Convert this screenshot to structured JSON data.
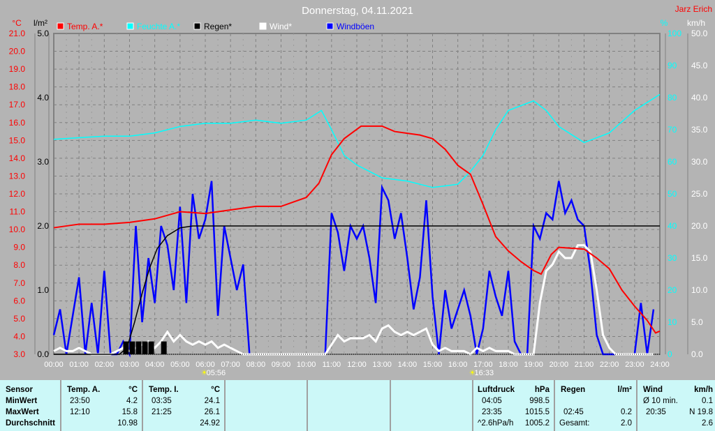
{
  "chart_data": {
    "type": "line",
    "title": "Donnerstag, 04.11.2021",
    "author": "Jarz Erich",
    "legend": [
      {
        "name": "Temp. A.*",
        "color": "#ff0000"
      },
      {
        "name": "Feuchte A.*",
        "color": "#00ffff"
      },
      {
        "name": "Regen*",
        "color": "#000000"
      },
      {
        "name": "Wind*",
        "color": "#ffffff"
      },
      {
        "name": "Windböen",
        "color": "#0000ff"
      }
    ],
    "axes": {
      "temp": {
        "unit": "°C",
        "range": [
          3,
          21
        ],
        "ticks": [
          "3.0",
          "4.0",
          "5.0",
          "6.0",
          "7.0",
          "8.0",
          "9.0",
          "10.0",
          "11.0",
          "12.0",
          "13.0",
          "14.0",
          "15.0",
          "16.0",
          "17.0",
          "18.0",
          "19.0",
          "20.0",
          "21.0"
        ],
        "color": "#ff0000"
      },
      "rain": {
        "unit": "l/m²",
        "range": [
          0,
          5
        ],
        "ticks": [
          "0.0",
          "1.0",
          "2.0",
          "3.0",
          "4.0",
          "5.0"
        ],
        "color": "#000000"
      },
      "humidity": {
        "unit": "%",
        "range": [
          0,
          100
        ],
        "ticks": [
          "0",
          "10",
          "20",
          "30",
          "40",
          "50",
          "60",
          "70",
          "80",
          "90",
          "100"
        ],
        "color": "#00ffff"
      },
      "wind": {
        "unit": "km/h",
        "range": [
          0,
          50
        ],
        "ticks": [
          "0.0",
          "5.0",
          "10.0",
          "15.0",
          "20.0",
          "25.0",
          "30.0",
          "35.0",
          "40.0",
          "45.0",
          "50.0"
        ],
        "color": "#ffffff"
      },
      "x": {
        "range": [
          0,
          24
        ],
        "ticks": [
          "00:00",
          "01:00",
          "02:00",
          "03:00",
          "04:00",
          "05:00",
          "06:00",
          "07:00",
          "08:00",
          "09:00",
          "10:00",
          "11:00",
          "12:00",
          "13:00",
          "14:00",
          "15:00",
          "16:00",
          "17:00",
          "18:00",
          "19:00",
          "20:00",
          "21:00",
          "22:00",
          "23:00",
          "24:00"
        ]
      }
    },
    "grid": true,
    "sunrise": "05:56",
    "sunset": "16:33",
    "series": {
      "temp": [
        [
          0,
          10.1
        ],
        [
          1,
          10.3
        ],
        [
          2,
          10.3
        ],
        [
          3,
          10.4
        ],
        [
          4,
          10.6
        ],
        [
          5,
          11.0
        ],
        [
          6,
          10.9
        ],
        [
          7,
          11.1
        ],
        [
          8,
          11.3
        ],
        [
          9,
          11.3
        ],
        [
          10,
          11.8
        ],
        [
          10.5,
          12.6
        ],
        [
          11,
          14.2
        ],
        [
          11.5,
          15.1
        ],
        [
          12.17,
          15.8
        ],
        [
          12.5,
          15.8
        ],
        [
          13,
          15.8
        ],
        [
          13.5,
          15.5
        ],
        [
          14,
          15.4
        ],
        [
          14.5,
          15.3
        ],
        [
          15,
          15.1
        ],
        [
          15.5,
          14.5
        ],
        [
          16,
          13.6
        ],
        [
          16.5,
          13.1
        ],
        [
          17,
          11.4
        ],
        [
          17.5,
          9.6
        ],
        [
          18,
          8.8
        ],
        [
          18.5,
          8.2
        ],
        [
          19,
          7.7
        ],
        [
          19.3,
          7.5
        ],
        [
          19.7,
          8.6
        ],
        [
          20,
          9.0
        ],
        [
          21,
          8.9
        ],
        [
          21.5,
          8.4
        ],
        [
          22,
          7.8
        ],
        [
          22.5,
          6.6
        ],
        [
          23,
          5.7
        ],
        [
          23.5,
          4.9
        ],
        [
          23.83,
          4.2
        ],
        [
          24,
          4.3
        ]
      ],
      "humidity": [
        [
          0,
          67
        ],
        [
          2,
          68
        ],
        [
          3,
          68
        ],
        [
          4,
          69
        ],
        [
          5,
          71
        ],
        [
          6,
          72
        ],
        [
          7,
          72
        ],
        [
          8,
          73
        ],
        [
          9,
          72
        ],
        [
          10,
          73
        ],
        [
          10.6,
          76
        ],
        [
          11,
          70
        ],
        [
          11.5,
          62
        ],
        [
          12,
          59
        ],
        [
          13,
          55
        ],
        [
          14,
          54
        ],
        [
          15,
          52
        ],
        [
          16,
          53
        ],
        [
          16.5,
          57
        ],
        [
          17,
          62
        ],
        [
          17.5,
          70
        ],
        [
          18,
          76
        ],
        [
          19,
          79
        ],
        [
          19.5,
          76
        ],
        [
          20,
          71
        ],
        [
          21,
          66
        ],
        [
          22,
          69
        ],
        [
          23,
          76
        ],
        [
          24,
          81
        ]
      ],
      "rain_total": [
        [
          0,
          0
        ],
        [
          2.6,
          0
        ],
        [
          2.9,
          0.1
        ],
        [
          3.2,
          0.5
        ],
        [
          3.5,
          0.95
        ],
        [
          3.8,
          1.35
        ],
        [
          4.1,
          1.65
        ],
        [
          4.5,
          1.85
        ],
        [
          5,
          1.97
        ],
        [
          5.5,
          2.0
        ],
        [
          24,
          2.0
        ]
      ],
      "rain_bars": [
        [
          2.75,
          0.2
        ],
        [
          3.0,
          0.2
        ],
        [
          3.25,
          0.2
        ],
        [
          3.5,
          0.2
        ],
        [
          3.75,
          0.2
        ],
        [
          4.25,
          0.2
        ]
      ],
      "wind_step_hours": 0.25,
      "wind": [
        0.5,
        1,
        0.5,
        0.5,
        1,
        0.5,
        0,
        0,
        0,
        0,
        0.5,
        1,
        0.5,
        1,
        1.5,
        2,
        1,
        2,
        3.5,
        2,
        3,
        2,
        1.5,
        2,
        1.5,
        2,
        1,
        1.5,
        1,
        0.5,
        0,
        0,
        0,
        0,
        0,
        0,
        0,
        0,
        0,
        0,
        0,
        0,
        0,
        0,
        1.5,
        3,
        2,
        2.5,
        2.5,
        2.5,
        3,
        2,
        4,
        4.5,
        3.5,
        3,
        3.5,
        3,
        3.5,
        4,
        1.5,
        0.5,
        1,
        0.5,
        0.5,
        0.5,
        0,
        1,
        0.5,
        1,
        0.5,
        0.5,
        0.5,
        0,
        0,
        0,
        0,
        8,
        13,
        14,
        16,
        15,
        15,
        17,
        17,
        16,
        10,
        3,
        1,
        0,
        0,
        0,
        0,
        0,
        0,
        0
      ],
      "gusts": [
        3,
        7,
        0,
        6,
        12,
        0,
        8,
        0,
        13,
        0,
        0,
        2,
        0,
        20,
        5,
        15,
        8,
        20,
        17,
        10,
        23,
        8,
        25,
        18,
        21,
        27,
        6,
        20,
        15,
        10,
        14,
        0,
        0,
        0,
        0,
        0,
        0,
        0,
        0,
        0,
        0,
        0,
        0,
        0,
        22,
        19,
        13,
        20,
        18,
        20,
        15,
        8,
        26,
        24,
        18,
        22,
        15,
        7,
        12,
        24,
        9,
        0,
        10,
        4,
        7,
        10,
        6,
        0,
        4,
        13,
        9,
        6,
        13,
        2,
        0,
        0,
        20,
        18,
        22,
        21,
        27,
        22,
        24,
        21,
        20,
        13,
        3,
        0,
        0,
        0,
        0,
        0,
        0,
        8,
        0,
        7
      ]
    }
  },
  "stats": {
    "sensor": {
      "h": "Sensor",
      "r1": "MinWert",
      "r2": "MaxWert",
      "r3": "Durchschnitt"
    },
    "tempA": {
      "h": "Temp. A.",
      "u": "°C",
      "min_t": "23:50",
      "min": "4.2",
      "max_t": "12:10",
      "max": "15.8",
      "avg": "10.98"
    },
    "tempI": {
      "h": "Temp. I.",
      "u": "°C",
      "min_t": "03:35",
      "min": "24.1",
      "max_t": "21:25",
      "max": "26.1",
      "avg": "24.92"
    },
    "press": {
      "h": "Luftdruck",
      "u": "hPa",
      "min_t": "04:05",
      "min": "998.5",
      "max_t": "23:35",
      "max": "1015.5",
      "trend": "^2.6hPa/h",
      "avg": "1005.2"
    },
    "rain": {
      "h": "Regen",
      "u": "l/m²",
      "max_t": "02:45",
      "max": "0.2",
      "total_l": "Gesamt:",
      "total": "2.0"
    },
    "wind": {
      "h": "Wind",
      "u": "km/h",
      "avg_l": "Ø 10 min.",
      "avg": "0.1",
      "max_t": "20:35",
      "max": "N 19.8",
      "mean": "2.6"
    }
  }
}
